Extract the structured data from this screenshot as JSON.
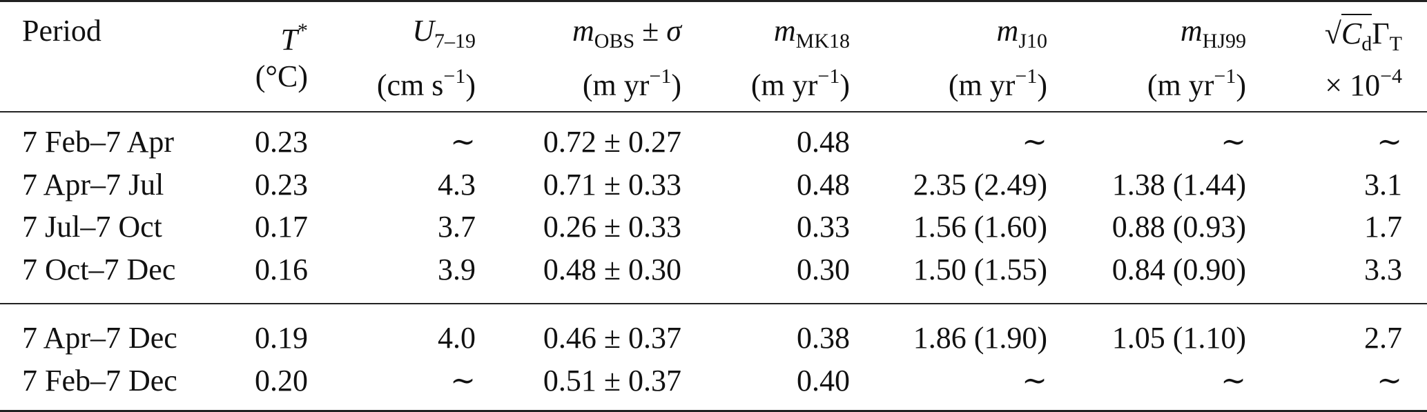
{
  "header": {
    "period": "Period",
    "t_star": "T",
    "t_star_sup": "*",
    "t_unit": "(°C)",
    "u_sym": "U",
    "u_sub": "7–19",
    "u_unit_a": "(cm s",
    "u_unit_sup": "−1",
    "u_unit_b": ")",
    "mobs_sym": "m",
    "mobs_sub": "OBS",
    "mobs_pm": " ± ",
    "mobs_sigma": "σ",
    "mobs_unit_a": "(m yr",
    "mobs_unit_sup": "−1",
    "mobs_unit_b": ")",
    "mmk_sym": "m",
    "mmk_sub": "MK18",
    "mmk_unit_a": "(m yr",
    "mmk_unit_sup": "−1",
    "mmk_unit_b": ")",
    "mj_sym": "m",
    "mj_sub": "J10",
    "mj_unit_a": "(m yr",
    "mj_unit_sup": "−1",
    "mj_unit_b": ")",
    "mhj_sym": "m",
    "mhj_sub": "HJ99",
    "mhj_unit_a": "(m yr",
    "mhj_unit_sup": "−1",
    "mhj_unit_b": ")",
    "cd_root": "√",
    "cd_sym": "C",
    "cd_sub": "d",
    "cd_gamma": "Γ",
    "cd_gamma_sub": "T",
    "cd_scale_a": "× 10",
    "cd_scale_sup": "−4"
  },
  "rows": [
    {
      "period": "7 Feb–7 Apr",
      "t": "0.23",
      "u": "∼",
      "mobs": "0.72 ± 0.27",
      "mmk": "0.48",
      "mj": "∼",
      "mhj": "∼",
      "cd": "∼"
    },
    {
      "period": "7 Apr–7 Jul",
      "t": "0.23",
      "u": "4.3",
      "mobs": "0.71 ± 0.33",
      "mmk": "0.48",
      "mj": "2.35 (2.49)",
      "mhj": "1.38 (1.44)",
      "cd": "3.1"
    },
    {
      "period": "7 Jul–7 Oct",
      "t": "0.17",
      "u": "3.7",
      "mobs": "0.26 ± 0.33",
      "mmk": "0.33",
      "mj": "1.56 (1.60)",
      "mhj": "0.88 (0.93)",
      "cd": "1.7"
    },
    {
      "period": "7 Oct–7 Dec",
      "t": "0.16",
      "u": "3.9",
      "mobs": "0.48 ± 0.30",
      "mmk": "0.30",
      "mj": "1.50 (1.55)",
      "mhj": "0.84 (0.90)",
      "cd": "3.3"
    },
    {
      "period": "7 Apr–7 Dec",
      "t": "0.19",
      "u": "4.0",
      "mobs": "0.46 ± 0.37",
      "mmk": "0.38",
      "mj": "1.86 (1.90)",
      "mhj": "1.05 (1.10)",
      "cd": "2.7"
    },
    {
      "period": "7 Feb–7 Dec",
      "t": "0.20",
      "u": "∼",
      "mobs": "0.51 ± 0.37",
      "mmk": "0.40",
      "mj": "∼",
      "mhj": "∼",
      "cd": "∼"
    }
  ]
}
